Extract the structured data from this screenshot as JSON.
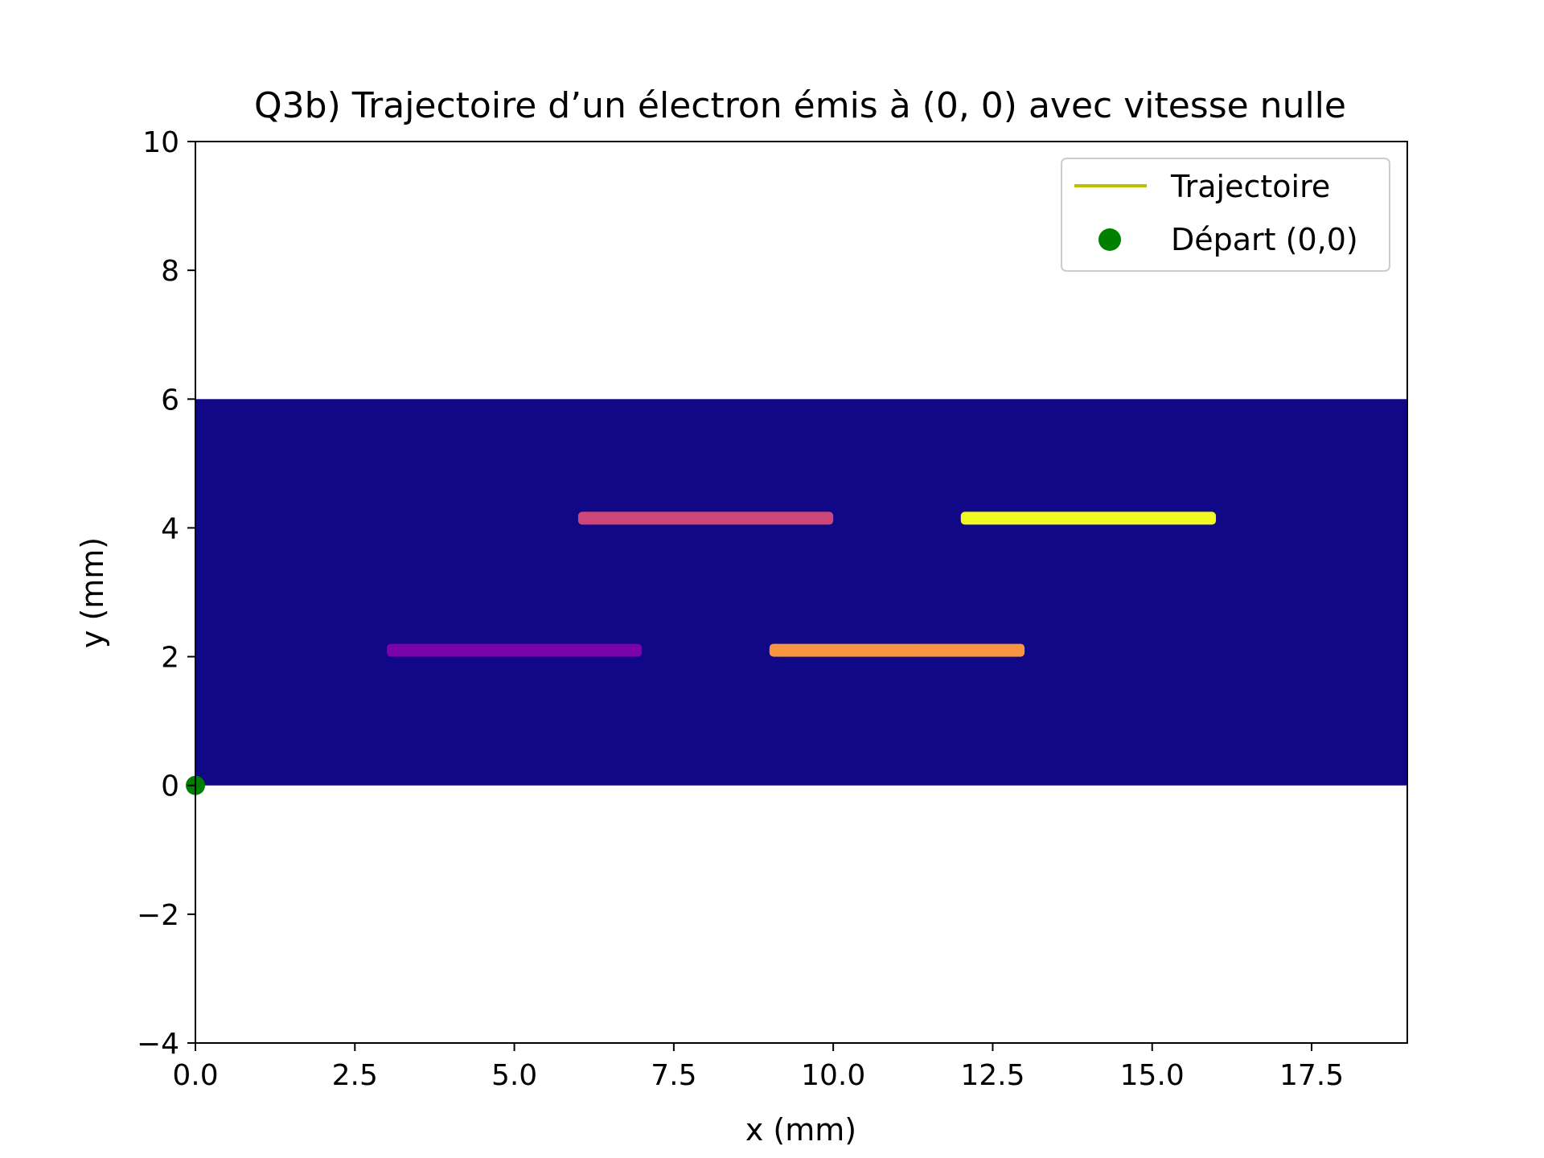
{
  "chart_data": {
    "type": "heatmap",
    "title": "Q3b) Trajectoire d’un électron émis à (0, 0) avec vitesse nulle",
    "xlabel": "x (mm)",
    "ylabel": "y (mm)",
    "xlim": [
      0,
      19
    ],
    "ylim": [
      -4,
      10
    ],
    "xticks": [
      0.0,
      2.5,
      5.0,
      7.5,
      10.0,
      12.5,
      15.0,
      17.5
    ],
    "xtick_labels": [
      "0.0",
      "2.5",
      "5.0",
      "7.5",
      "10.0",
      "12.5",
      "15.0",
      "17.5"
    ],
    "yticks": [
      -4,
      -2,
      0,
      2,
      4,
      6,
      8,
      10
    ],
    "ytick_labels": [
      "−4",
      "−2",
      "0",
      "2",
      "4",
      "6",
      "8",
      "10"
    ],
    "grid": false,
    "legend_position": "top-right",
    "colormap": "plasma",
    "heatmap": {
      "x_extent": [
        0,
        19
      ],
      "y_extent": [
        0,
        6
      ],
      "background_color": "#100887"
    },
    "electrodes": [
      {
        "x_start": 3,
        "x_end": 7,
        "y": 2.1,
        "color": "#7c03a9"
      },
      {
        "x_start": 6,
        "x_end": 10,
        "y": 4.15,
        "color": "#cc4778"
      },
      {
        "x_start": 9,
        "x_end": 13,
        "y": 2.1,
        "color": "#f89540"
      },
      {
        "x_start": 12,
        "x_end": 16,
        "y": 4.15,
        "color": "#f0f921"
      }
    ],
    "series": [
      {
        "name": "Trajectoire",
        "kind": "line",
        "color": "#bfbf00",
        "x": [
          0
        ],
        "y": [
          0
        ]
      },
      {
        "name": "Départ (0,0)",
        "kind": "marker",
        "color": "#008000",
        "x": [
          0
        ],
        "y": [
          0
        ]
      }
    ]
  }
}
